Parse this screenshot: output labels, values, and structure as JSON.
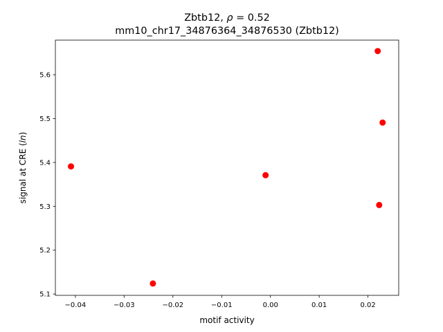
{
  "chart_data": {
    "type": "scatter",
    "title_gene": "Zbtb12, ",
    "title_rho_symbol": "ρ",
    "title_rho_value": " = 0.52",
    "subtitle": "mm10_chr17_34876364_34876530 (Zbtb12)",
    "xlabel": "motif activity",
    "ylabel_prefix": "signal at CRE (",
    "ylabel_italic": "ln",
    "ylabel_suffix": ")",
    "xlim": [
      -0.0441,
      0.0263
    ],
    "ylim": [
      5.097,
      5.679
    ],
    "xticks": [
      -0.04,
      -0.03,
      -0.02,
      -0.01,
      0.0,
      0.01,
      0.02
    ],
    "xtick_labels": [
      "−0.04",
      "−0.03",
      "−0.02",
      "−0.01",
      "0.00",
      "0.01",
      "0.02"
    ],
    "yticks": [
      5.1,
      5.2,
      5.3,
      5.4,
      5.5,
      5.6
    ],
    "ytick_labels": [
      "5.1",
      "5.2",
      "5.3",
      "5.4",
      "5.5",
      "5.6"
    ],
    "grid": false,
    "marker_color": "#ff0000",
    "points": [
      {
        "x": -0.0409,
        "y": 5.391
      },
      {
        "x": -0.0241,
        "y": 5.124
      },
      {
        "x": -0.001,
        "y": 5.371
      },
      {
        "x": 0.022,
        "y": 5.654
      },
      {
        "x": 0.023,
        "y": 5.491
      },
      {
        "x": 0.0223,
        "y": 5.303
      }
    ]
  }
}
